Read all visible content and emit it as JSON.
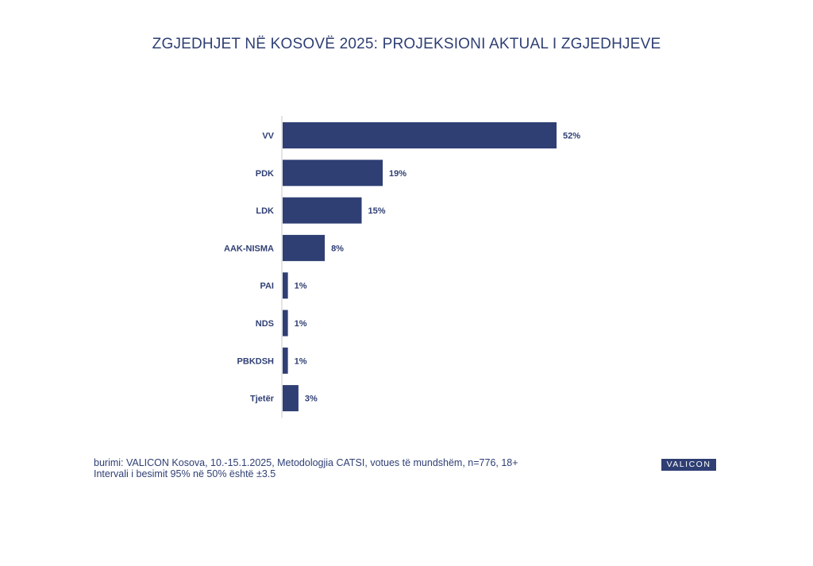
{
  "title": "ZGJEDHJET NË KOSOVË 2025: PROJEKSIONI AKTUAL I ZGJEDHJEVE",
  "colors": {
    "bar": "#2f3f74",
    "text": "#2f3f74",
    "axis": "#c8c8c8"
  },
  "chart_data": {
    "type": "bar",
    "orientation": "horizontal",
    "categories": [
      "VV",
      "PDK",
      "LDK",
      "AAK-NISMA",
      "PAI",
      "NDS",
      "PBKDSH",
      "Tjetër"
    ],
    "values": [
      52,
      19,
      15,
      8,
      1,
      1,
      1,
      3
    ],
    "value_labels": [
      "52%",
      "19%",
      "15%",
      "8%",
      "1%",
      "1%",
      "1%",
      "3%"
    ],
    "unit": "%",
    "xlim": [
      0,
      52
    ],
    "grid": false,
    "legend": "none"
  },
  "footer": {
    "line1": "burimi: VALICON Kosova, 10.-15.1.2025, Metodologjia CATSI, votues të mundshëm, n=776, 18+",
    "line2": "Intervali i besimit 95% në 50% është ±3.5"
  },
  "logo_text": "VALICON"
}
